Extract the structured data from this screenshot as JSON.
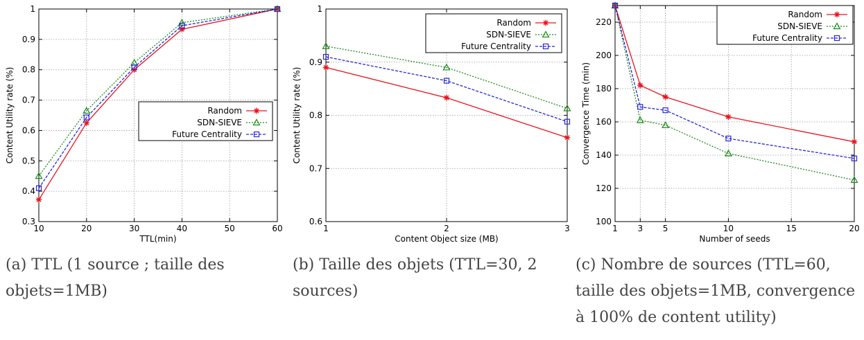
{
  "chart_data": [
    {
      "type": "line",
      "xlabel": "TTL(min)",
      "ylabel": "Content Utility rate (%)",
      "xlim": [
        10,
        60
      ],
      "ylim": [
        0.3,
        1.0
      ],
      "xticks": [
        10,
        20,
        30,
        40,
        50,
        60
      ],
      "yticks": [
        0.3,
        0.4,
        0.5,
        0.6,
        0.7,
        0.8,
        0.9,
        1
      ],
      "grid": true,
      "legend_position": "center-right",
      "series": [
        {
          "name": "Random",
          "color": "#e8141c",
          "marker": "star",
          "dash": "solid",
          "x": [
            10,
            20,
            30,
            40,
            60
          ],
          "y": [
            0.372,
            0.625,
            0.8,
            0.933,
            1.0
          ]
        },
        {
          "name": "SDN-SIEVE",
          "color": "#1a8a1a",
          "marker": "triangle",
          "dash": "dotted",
          "x": [
            10,
            20,
            30,
            40,
            60
          ],
          "y": [
            0.45,
            0.665,
            0.823,
            0.955,
            1.0
          ]
        },
        {
          "name": "Future Centrality",
          "color": "#2626d9",
          "marker": "square",
          "dash": "dashed",
          "x": [
            10,
            20,
            30,
            40,
            60
          ],
          "y": [
            0.41,
            0.643,
            0.808,
            0.945,
            1.0
          ]
        }
      ]
    },
    {
      "type": "line",
      "xlabel": "Content Object size (MB)",
      "ylabel": "Content Utility rate (%)",
      "xlim": [
        1,
        3
      ],
      "ylim": [
        0.6,
        1.0
      ],
      "xticks": [
        1,
        2,
        3
      ],
      "yticks": [
        0.6,
        0.7,
        0.8,
        0.9,
        1
      ],
      "grid": true,
      "legend_position": "top-right",
      "series": [
        {
          "name": "Random",
          "color": "#e8141c",
          "marker": "star",
          "dash": "solid",
          "x": [
            1,
            2,
            3
          ],
          "y": [
            0.89,
            0.833,
            0.758
          ]
        },
        {
          "name": "SDN-SIEVE",
          "color": "#1a8a1a",
          "marker": "triangle",
          "dash": "dotted",
          "x": [
            1,
            2,
            3
          ],
          "y": [
            0.93,
            0.89,
            0.813
          ]
        },
        {
          "name": "Future Centrality",
          "color": "#2626d9",
          "marker": "square",
          "dash": "dashed",
          "x": [
            1,
            2,
            3
          ],
          "y": [
            0.91,
            0.865,
            0.788
          ]
        }
      ]
    },
    {
      "type": "line",
      "xlabel": "Number of seeds",
      "ylabel": "Convergence Time (min)",
      "xlim": [
        1,
        20
      ],
      "ylim": [
        100,
        230
      ],
      "xticks": [
        1,
        3,
        5,
        10,
        15,
        20
      ],
      "yticks": [
        100,
        120,
        140,
        160,
        180,
        200,
        220
      ],
      "grid": true,
      "legend_position": "top-right",
      "series": [
        {
          "name": "Random",
          "color": "#e8141c",
          "marker": "star",
          "dash": "solid",
          "x": [
            1,
            3,
            5,
            10,
            20
          ],
          "y": [
            230,
            182,
            175,
            163,
            148
          ]
        },
        {
          "name": "SDN-SIEVE",
          "color": "#1a8a1a",
          "marker": "triangle",
          "dash": "dotted",
          "x": [
            1,
            3,
            5,
            10,
            20
          ],
          "y": [
            230,
            161,
            158,
            141,
            125
          ]
        },
        {
          "name": "Future Centrality",
          "color": "#2626d9",
          "marker": "square",
          "dash": "dashed",
          "x": [
            1,
            3,
            5,
            10,
            20
          ],
          "y": [
            230,
            169,
            167,
            150,
            138
          ]
        }
      ]
    }
  ],
  "captions": [
    "(a) TTL (1 source ; taille des objets=1MB)",
    "(b) Taille des objets (TTL=30, 2 sources)",
    "(c) Nombre de sources (TTL=60, taille des objets=1MB, convergence à 100% de content utility)"
  ]
}
